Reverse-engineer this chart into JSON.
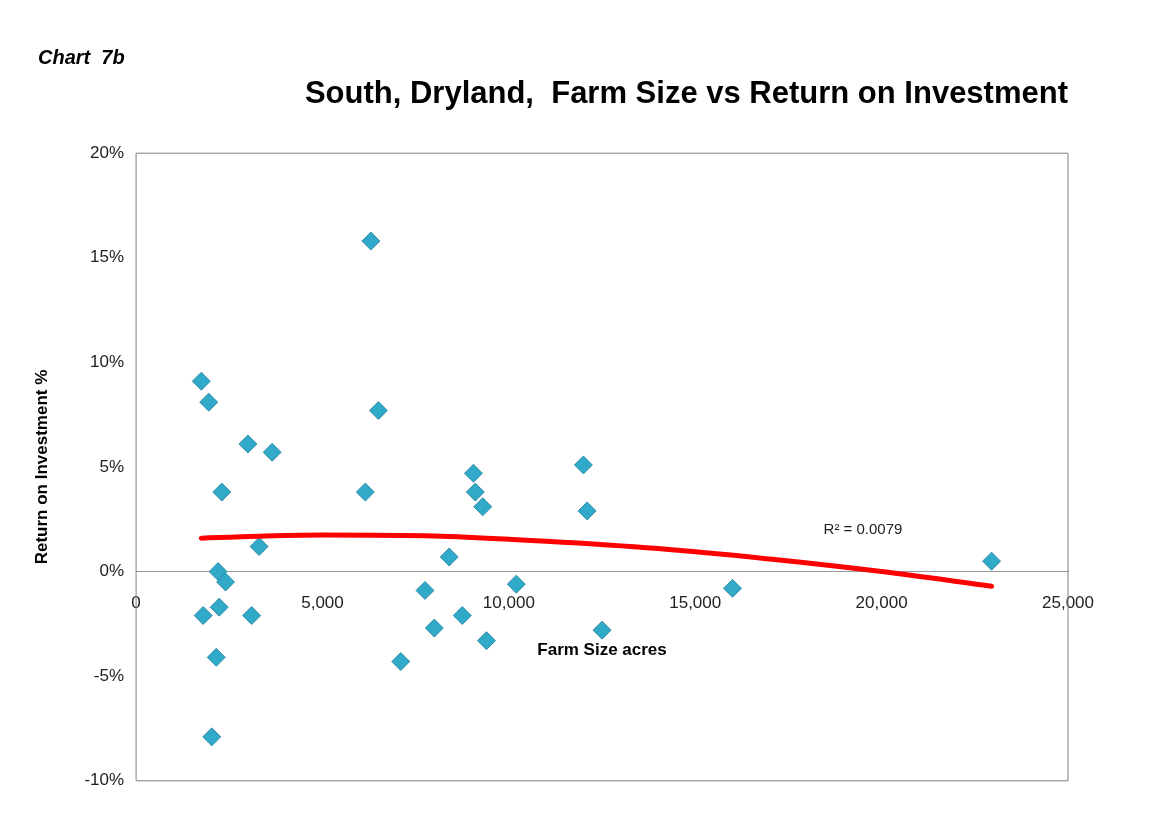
{
  "chart_data": {
    "type": "scatter",
    "title": "South, Dryland,  Farm Size vs Return on Investment",
    "xlabel": "Farm Size acres",
    "ylabel": "Return on Investment %",
    "annotations": [
      "Chart  7b",
      "R² = 0.0079"
    ],
    "series": [
      {
        "type": "scatter",
        "color": "#31a9c9",
        "marker": "diamond",
        "x": [
          1750,
          1950,
          2300,
          2200,
          2400,
          2230,
          1800,
          2150,
          2030,
          3000,
          3300,
          3100,
          3650,
          6300,
          6150,
          6500,
          7100,
          7750,
          8000,
          8400,
          8750,
          9050,
          9100,
          9300,
          9400,
          10200,
          12000,
          12100,
          12500,
          16000,
          22950
        ],
        "values": [
          9.1,
          8.1,
          3.8,
          0,
          -0.5,
          -1.7,
          -2.1,
          -4.1,
          -7.9,
          6.1,
          1.2,
          -2.1,
          5.7,
          15.8,
          3.8,
          7.7,
          -4.3,
          -0.9,
          -2.7,
          0.7,
          -2.1,
          4.7,
          3.8,
          3.1,
          -3.3,
          -0.6,
          5.1,
          2.9,
          -2.8,
          -0.8,
          0.5
        ]
      },
      {
        "type": "line",
        "color": "#ff0000",
        "marker": "none",
        "x": [
          1750,
          5000,
          8000,
          11000,
          14000,
          17000,
          20000,
          22950
        ],
        "values": [
          1.6,
          1.75,
          1.7,
          1.45,
          1.1,
          0.6,
          0,
          -0.7
        ]
      }
    ],
    "xlim": [
      0,
      25000
    ],
    "xticks": [
      {
        "value": 0,
        "label": "0"
      },
      {
        "value": 5000,
        "label": "5,000"
      },
      {
        "value": 10000,
        "label": "10,000"
      },
      {
        "value": 15000,
        "label": "15,000"
      },
      {
        "value": 20000,
        "label": "20,000"
      },
      {
        "value": 25000,
        "label": "25,000"
      }
    ],
    "ylim": [
      -10,
      20
    ],
    "yticks": [
      {
        "value": -10,
        "label": "-10%"
      },
      {
        "value": -5,
        "label": "-5%"
      },
      {
        "value": 0,
        "label": "0%"
      },
      {
        "value": 5,
        "label": "5%"
      },
      {
        "value": 10,
        "label": "10%"
      },
      {
        "value": 15,
        "label": "15%"
      },
      {
        "value": 20,
        "label": "20%"
      }
    ],
    "grid": false,
    "legend": false
  }
}
